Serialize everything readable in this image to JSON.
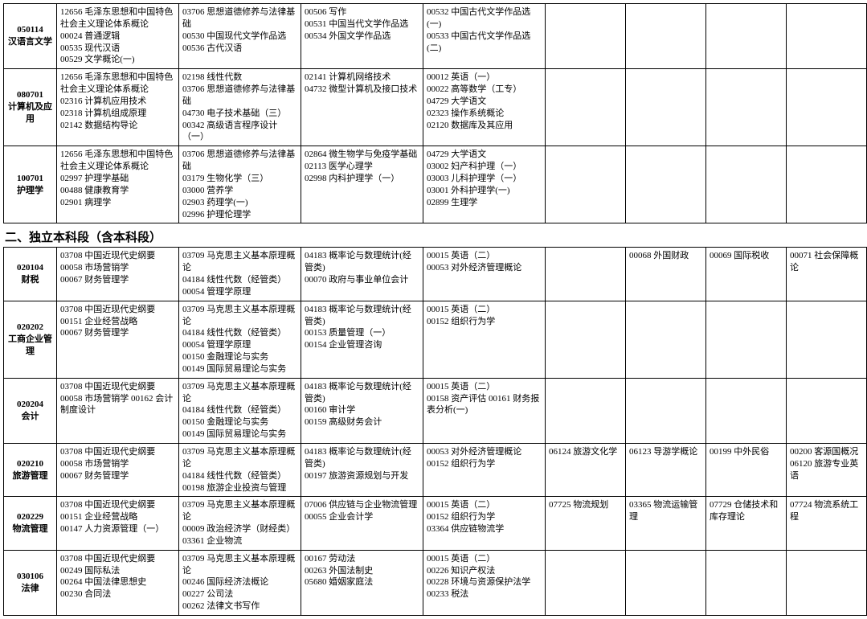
{
  "section_title": "二、独立本科段（含本科段）",
  "colwidths": [
    "66",
    "152",
    "152",
    "152",
    "152",
    "100",
    "100",
    "100",
    "100"
  ],
  "rows_top": [
    {
      "code": "050114",
      "name": "汉语言文学",
      "cells": [
        [
          "12656 毛泽东思想和中国特色社会主义理论体系概论",
          "00024 普通逻辑",
          "00535 现代汉语",
          "00529 文学概论(一)"
        ],
        [
          "03706 思想道德修养与法律基础",
          "00530 中国现代文学作品选",
          "00536 古代汉语"
        ],
        [
          "00506 写作",
          "00531 中国当代文学作品选",
          "00534 外国文学作品选"
        ],
        [
          "00532 中国古代文学作品选(一)",
          "00533 中国古代文学作品选(二)"
        ],
        [],
        [],
        [],
        []
      ]
    },
    {
      "code": "080701",
      "name": "计算机及应用",
      "cells": [
        [
          "12656 毛泽东思想和中国特色社会主义理论体系概论",
          "02316 计算机应用技术",
          "02318 计算机组成原理",
          "02142 数据结构导论"
        ],
        [
          "02198 线性代数",
          "03706 思想道德修养与法律基础",
          "04730 电子技术基础（三）",
          "00342 高级语言程序设计（一）"
        ],
        [
          "02141 计算机网络技术",
          "04732 微型计算机及接口技术"
        ],
        [
          "00012 英语（一）",
          "00022 高等数学（工专）",
          "04729 大学语文",
          "02323 操作系统概论",
          "02120 数据库及其应用"
        ],
        [],
        [],
        [],
        []
      ]
    },
    {
      "code": "100701",
      "name": "护理学",
      "cells": [
        [
          "12656 毛泽东思想和中国特色社会主义理论体系概论",
          "02997 护理学基础",
          "00488 健康教育学",
          "02901 病理学"
        ],
        [
          "03706 思想道德修养与法律基础",
          "03179 生物化学（三）",
          "03000 营养学",
          "02903 药理学(一)",
          "02996 护理伦理学"
        ],
        [
          "02864 微生物学与免疫学基础",
          "02113 医学心理学",
          "02998 内科护理学（一）"
        ],
        [
          "04729 大学语文",
          "03002 妇产科护理（一）",
          "03003 儿科护理学（一）",
          "03001 外科护理学(一)",
          "02899 生理学"
        ],
        [],
        [],
        [],
        []
      ]
    }
  ],
  "rows_bottom": [
    {
      "code": "020104",
      "name": "财税",
      "cells": [
        [
          "03708 中国近现代史纲要",
          "00058 市场营销学",
          "00067 财务管理学"
        ],
        [
          "03709 马克思主义基本原理概论",
          "04184 线性代数（经管类）",
          "00054 管理学原理"
        ],
        [
          "04183 概率论与数理统计(经管类)",
          "00070 政府与事业单位会计"
        ],
        [
          "00015 英语（二）",
          "00053 对外经济管理概论"
        ],
        [],
        [
          "00068 外国财政"
        ],
        [
          "00069 国际税收"
        ],
        [
          "00071 社会保障概论"
        ]
      ]
    },
    {
      "code": "020202",
      "name": "工商企业管理",
      "cells": [
        [
          "03708 中国近现代史纲要",
          "00151 企业经营战略",
          "00067 财务管理学"
        ],
        [
          "03709 马克思主义基本原理概论",
          "04184 线性代数（经管类）",
          "00054 管理学原理",
          "00150 金融理论与实务",
          "00149 国际贸易理论与实务"
        ],
        [
          "04183 概率论与数理统计(经管类)",
          "00153 质量管理（一）",
          "00154 企业管理咨询"
        ],
        [
          "00015 英语（二）",
          "00152 组织行为学"
        ],
        [],
        [],
        [],
        []
      ]
    },
    {
      "code": "020204",
      "name": "会计",
      "cells": [
        [
          "03708 中国近现代史纲要",
          "00058 市场营销学 00162 会计制度设计"
        ],
        [
          "03709 马克思主义基本原理概论",
          "04184 线性代数（经管类）",
          "00150 金融理论与实务",
          "00149 国际贸易理论与实务"
        ],
        [
          "04183 概率论与数理统计(经管类)",
          "00160 审计学",
          "00159 高级财务会计"
        ],
        [
          "00015 英语（二）",
          "00158 资产评估 00161 财务报表分析(一)"
        ],
        [],
        [],
        [],
        []
      ]
    },
    {
      "code": "020210",
      "name": "旅游管理",
      "cells": [
        [
          "03708 中国近现代史纲要",
          "00058 市场营销学",
          "00067 财务管理学"
        ],
        [
          "03709 马克思主义基本原理概论",
          "04184 线性代数（经管类）",
          "00198 旅游企业投资与管理"
        ],
        [
          "04183 概率论与数理统计(经管类)",
          "00197 旅游资源规划与开发"
        ],
        [
          "00053 对外经济管理概论",
          "00152 组织行为学"
        ],
        [
          "06124 旅游文化学"
        ],
        [
          "06123 导游学概论"
        ],
        [
          "00199 中外民俗"
        ],
        [
          "00200 客源国概况",
          "06120 旅游专业英语"
        ]
      ]
    },
    {
      "code": "020229",
      "name": "物流管理",
      "cells": [
        [
          "03708 中国近现代史纲要",
          "00151 企业经营战略",
          "00147 人力资源管理（一）"
        ],
        [
          "03709 马克思主义基本原理概论",
          "00009 政治经济学（财经类）",
          "03361 企业物流"
        ],
        [
          "07006 供应链与企业物流管理",
          "00055 企业会计学"
        ],
        [
          "00015 英语（二）",
          "00152 组织行为学",
          "03364 供应链物流学"
        ],
        [
          "07725 物流规划"
        ],
        [
          "03365 物流运输管理"
        ],
        [
          "07729 仓储技术和库存理论"
        ],
        [
          "07724 物流系统工程"
        ]
      ]
    },
    {
      "code": "030106",
      "name": "法律",
      "cells": [
        [
          "03708 中国近现代史纲要",
          "00249 国际私法",
          "00264 中国法律思想史",
          "00230 合同法"
        ],
        [
          "03709 马克思主义基本原理概论",
          "00246 国际经济法概论",
          "00227 公司法",
          "00262 法律文书写作"
        ],
        [
          "00167 劳动法",
          "00263 外国法制史",
          "05680 婚姻家庭法"
        ],
        [
          "00015 英语（二）",
          "00226 知识产权法",
          "00228 环境与资源保护法学",
          "00233 税法"
        ],
        [],
        [],
        [],
        []
      ]
    }
  ]
}
